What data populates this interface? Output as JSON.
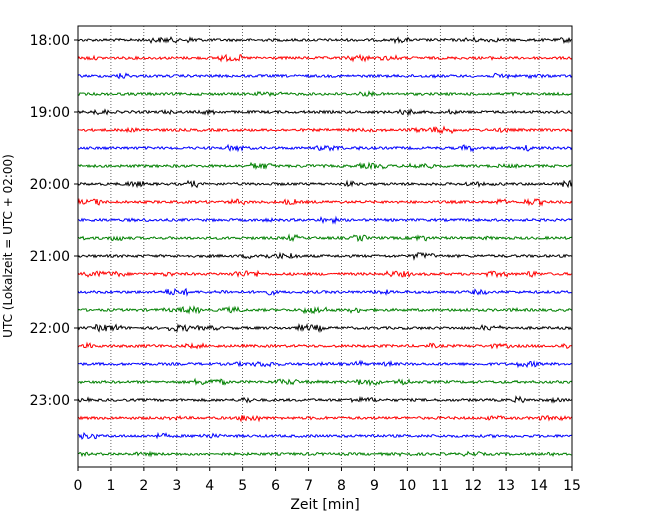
{
  "chart_data": {
    "type": "line",
    "title": "",
    "xlabel": "Zeit  [min]",
    "ylabel": "UTC (Lokalzeit = UTC + 02:00)",
    "xlim": [
      0,
      15
    ],
    "x_ticks": [
      "0",
      "1",
      "2",
      "3",
      "4",
      "5",
      "6",
      "7",
      "8",
      "9",
      "10",
      "11",
      "12",
      "13",
      "14",
      "15"
    ],
    "y_ticks": [
      "18:00",
      "19:00",
      "20:00",
      "21:00",
      "22:00",
      "23:00"
    ],
    "traces_per_hour": 4,
    "trace_start_times": [
      "18:00",
      "18:15",
      "18:30",
      "18:45",
      "19:00",
      "19:15",
      "19:30",
      "19:45",
      "20:00",
      "20:15",
      "20:30",
      "20:45",
      "21:00",
      "21:15",
      "21:30",
      "21:45",
      "22:00",
      "22:15",
      "22:30",
      "22:45",
      "23:00",
      "23:15",
      "23:30",
      "23:45"
    ],
    "trace_colors": [
      "#000000",
      "#ff0000",
      "#0000ff",
      "#008000"
    ],
    "grid": "vertical dotted",
    "legend": "none"
  }
}
